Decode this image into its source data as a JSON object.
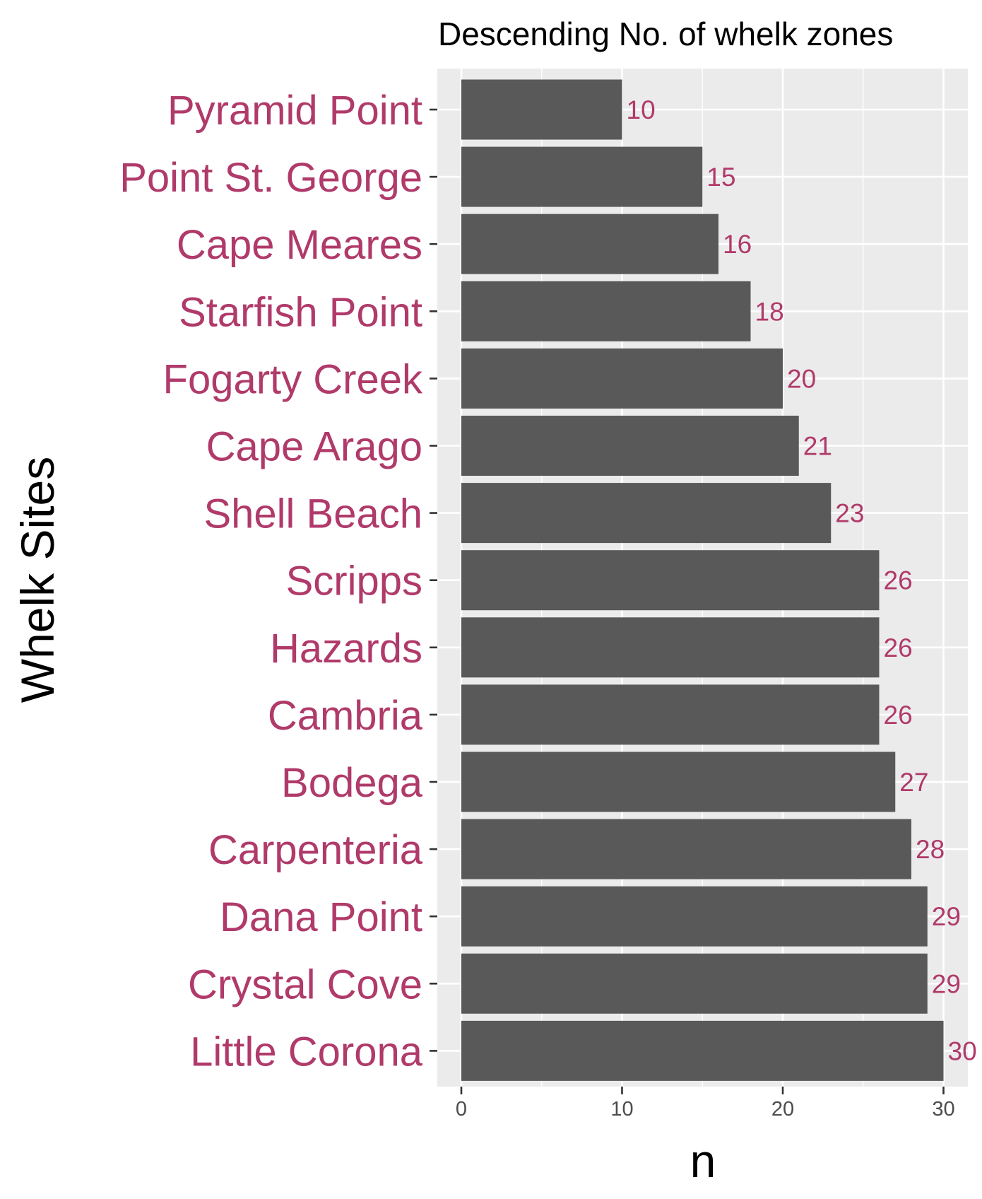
{
  "chart_data": {
    "type": "bar",
    "orientation": "horizontal",
    "title": "Descending No. of whelk zones",
    "xlabel": "n",
    "ylabel": "Whelk Sites",
    "xlim": [
      0,
      31.5
    ],
    "x_ticks": [
      0,
      10,
      20,
      30
    ],
    "categories": [
      "Pyramid Point",
      "Point St. George",
      "Cape Meares",
      "Starfish Point",
      "Fogarty Creek",
      "Cape Arago",
      "Shell Beach",
      "Scripps",
      "Hazards",
      "Cambria",
      "Bodega",
      "Carpenteria",
      "Dana Point",
      "Crystal Cove",
      "Little Corona"
    ],
    "values": [
      10,
      15,
      16,
      18,
      20,
      21,
      23,
      26,
      26,
      26,
      27,
      28,
      29,
      29,
      30
    ],
    "grid": true,
    "legend": "none",
    "colors": {
      "bar": "#595959",
      "panel_background": "#ebebeb",
      "grid": "#ffffff",
      "category_label": "#b03a6a",
      "value_label": "#b03a6a",
      "tick_text": "#4d4d4d"
    }
  }
}
